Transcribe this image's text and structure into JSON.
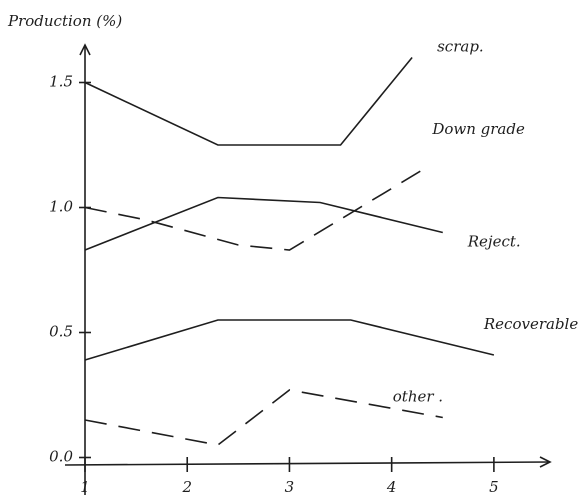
{
  "chart_data": {
    "type": "line",
    "y_label": "Production (%)",
    "xlim": [
      1,
      5.5
    ],
    "ylim": [
      -0.05,
      1.65
    ],
    "xticks": [
      1,
      2,
      3,
      4,
      5
    ],
    "yticks": [
      {
        "value": 0,
        "label": "0.0"
      },
      0.5,
      {
        "value": 1,
        "label": "1.0"
      },
      1.5
    ],
    "grid": false,
    "series": [
      {
        "name": "scrap.",
        "color": "#1e1e1e",
        "dashed": false,
        "x": [
          1,
          2.3,
          3.5,
          4.2
        ],
        "values": [
          1.5,
          1.25,
          1.25,
          1.6
        ]
      },
      {
        "name": "Down grade",
        "color": "#1e1e1e",
        "dashed": true,
        "x": [
          1,
          1.6,
          2.5,
          3,
          4.3
        ],
        "values": [
          1.0,
          0.95,
          0.85,
          0.83,
          1.15
        ]
      },
      {
        "name": "Reject.",
        "color": "#1e1e1e",
        "dashed": false,
        "x": [
          1,
          2.3,
          3.3,
          4.5
        ],
        "values": [
          0.83,
          1.04,
          1.02,
          0.9
        ]
      },
      {
        "name": "Recoverable",
        "color": "#1e1e1e",
        "dashed": false,
        "x": [
          1,
          2.3,
          3.6,
          5
        ],
        "values": [
          0.39,
          0.55,
          0.55,
          0.41
        ]
      },
      {
        "name": "other .",
        "color": "#1e1e1e",
        "dashed": true,
        "x": [
          1,
          2.3,
          3,
          4.5
        ],
        "values": [
          0.15,
          0.05,
          0.27,
          0.16
        ]
      }
    ]
  }
}
